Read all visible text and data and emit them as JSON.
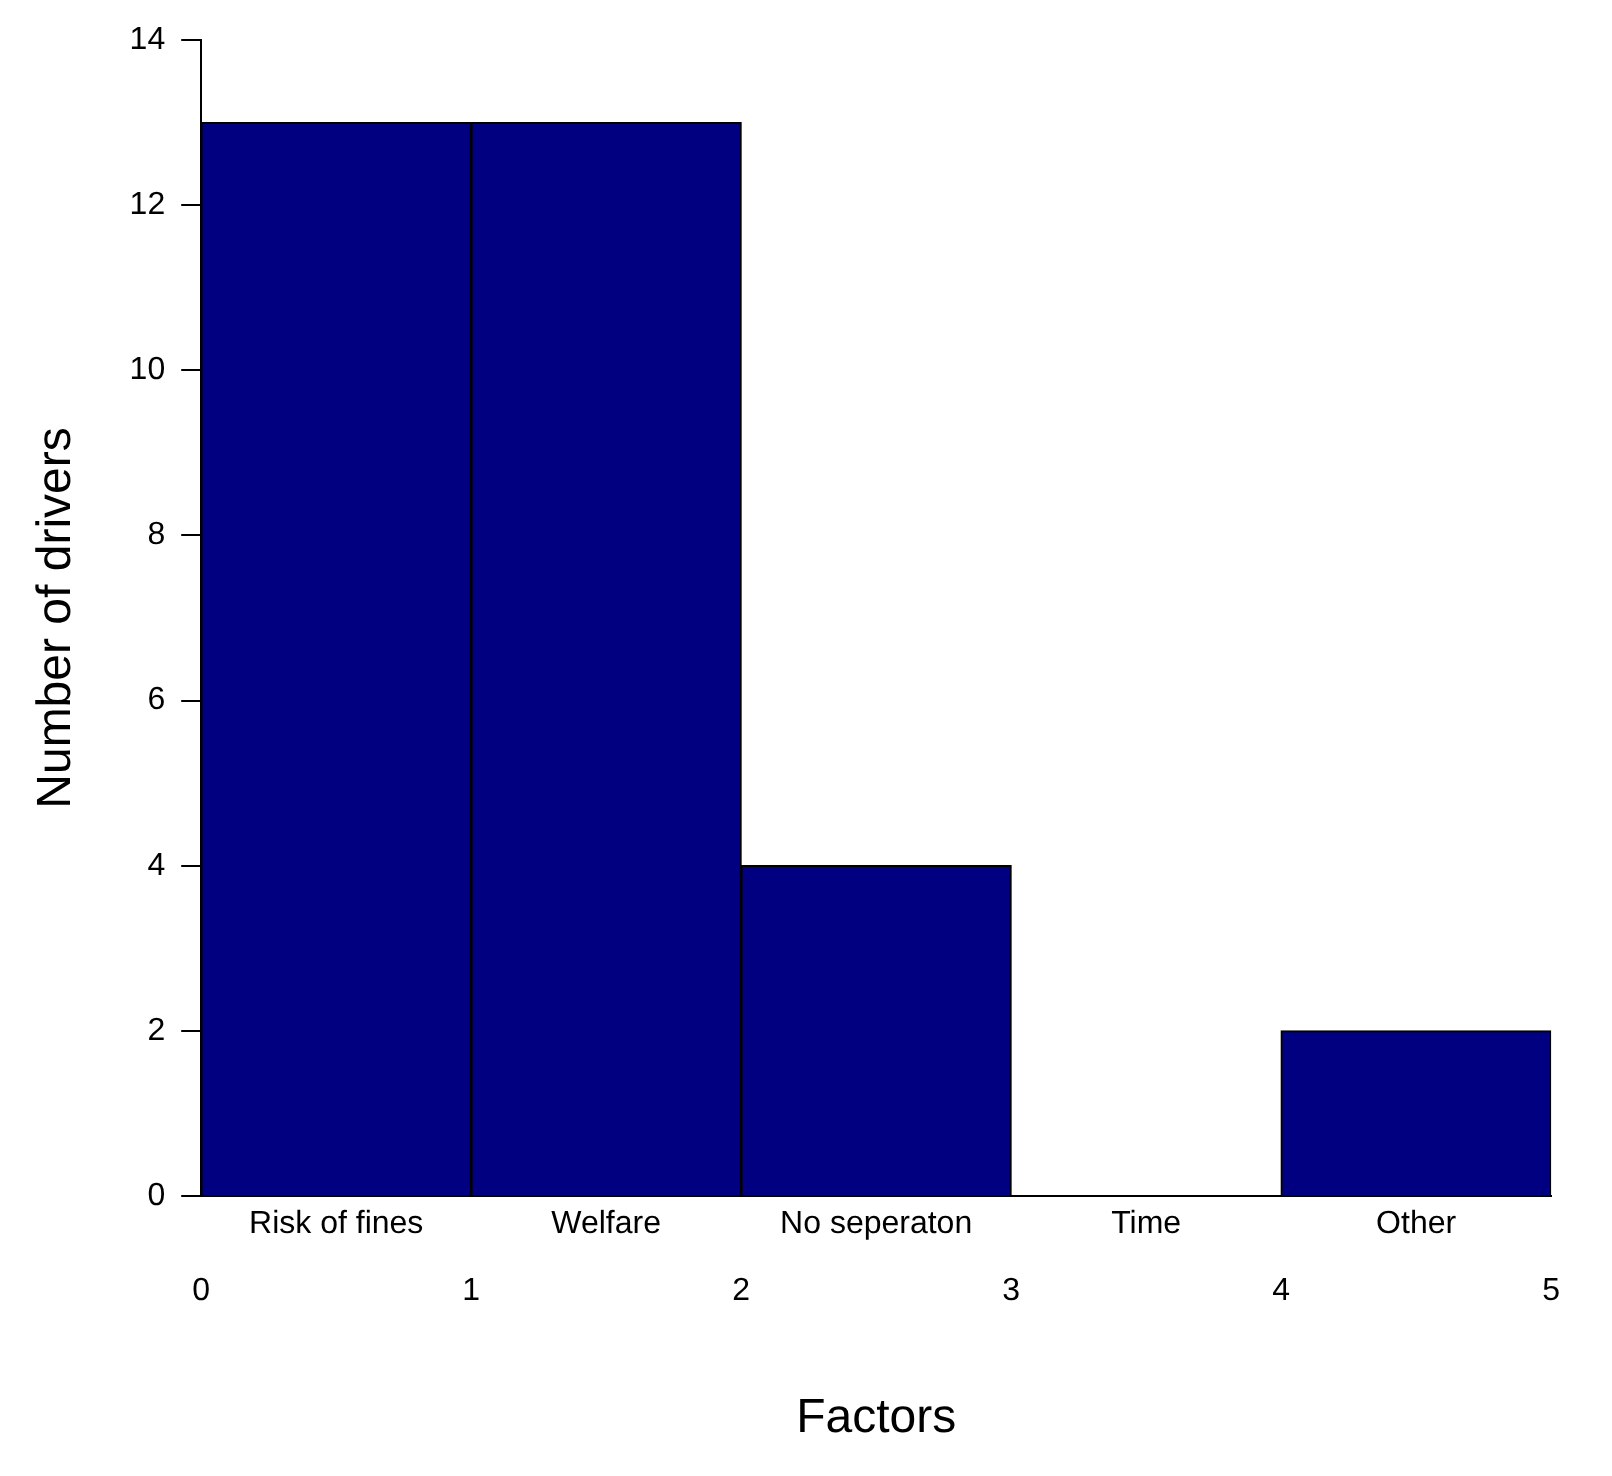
{
  "chart_data": {
    "type": "histogram",
    "xlabel": "Factors",
    "ylabel": "Number of drivers",
    "bins": [
      0,
      1,
      2,
      3,
      4,
      5
    ],
    "values": [
      13,
      13,
      4,
      0,
      2
    ],
    "categories": [
      "Risk of fines",
      "Welfare",
      "No seperaton",
      "Time",
      "Other"
    ],
    "color": "#000080",
    "xlim": [
      0,
      5
    ],
    "xticks": [
      0,
      1,
      2,
      3,
      4,
      5
    ],
    "ylim": [
      0,
      14
    ],
    "yticks": [
      0,
      2,
      4,
      6,
      8,
      10,
      12,
      14
    ],
    "grid": false,
    "legend": false
  }
}
